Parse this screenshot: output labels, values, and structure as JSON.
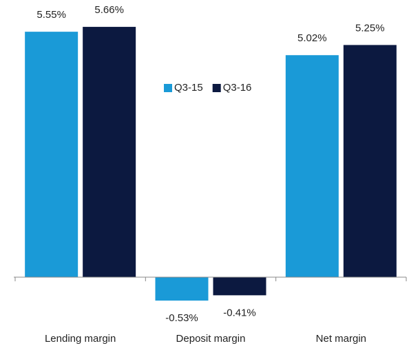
{
  "chart_data": {
    "type": "bar",
    "categories": [
      "Lending margin",
      "Deposit margin",
      "Net margin"
    ],
    "series": [
      {
        "name": "Q3-15",
        "color": "#1a9ad7",
        "values": [
          5.55,
          -0.53,
          5.02
        ],
        "value_labels": [
          "5.55%",
          "-0.53%",
          "5.02%"
        ]
      },
      {
        "name": "Q3-16",
        "color": "#0c1940",
        "values": [
          5.66,
          -0.41,
          5.25
        ],
        "value_labels": [
          "5.66%",
          "-0.41%",
          "5.25%"
        ]
      }
    ],
    "legend": "center"
  }
}
